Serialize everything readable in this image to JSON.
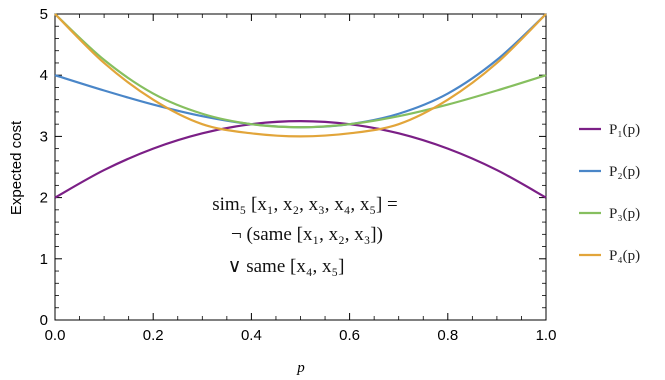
{
  "chart_data": {
    "type": "line",
    "title": "",
    "xlabel": "p",
    "ylabel": "Expected cost",
    "xlim": [
      0,
      1
    ],
    "ylim": [
      0,
      5
    ],
    "x_ticks": [
      "0.0",
      "0.2",
      "0.4",
      "0.6",
      "0.8",
      "1.0"
    ],
    "y_ticks": [
      "0",
      "1",
      "2",
      "3",
      "4",
      "5"
    ],
    "grid": false,
    "legend_position": "right",
    "x": [
      0,
      0.1,
      0.2,
      0.3,
      0.4,
      0.5,
      0.6,
      0.7,
      0.8,
      0.9,
      1.0
    ],
    "series": [
      {
        "name": "P₁(p)",
        "color": "#7b1f86",
        "values": [
          2.0,
          2.45,
          2.8,
          3.05,
          3.2,
          3.25,
          3.2,
          3.05,
          2.8,
          2.45,
          2.0
        ]
      },
      {
        "name": "P₂(p)",
        "color": "#4a86c8",
        "values": [
          4.0,
          3.75,
          3.52,
          3.33,
          3.2,
          3.15,
          3.2,
          3.37,
          3.7,
          4.25,
          5.0
        ]
      },
      {
        "name": "P₃(p)",
        "color": "#86bf5f",
        "values": [
          5.0,
          4.25,
          3.7,
          3.37,
          3.2,
          3.15,
          3.2,
          3.33,
          3.52,
          3.75,
          4.0
        ]
      },
      {
        "name": "P₄(p)",
        "color": "#e2a53a",
        "values": [
          5.0,
          4.2,
          3.6,
          3.2,
          3.05,
          3.0,
          3.05,
          3.2,
          3.6,
          4.2,
          5.0
        ]
      }
    ],
    "annotation": [
      "sim₅ [x₁, x₂, x₃, x₄, x₅] =",
      "¬ (same [x₁, x₂, x₃])",
      "∨ same [x₄, x₅]"
    ]
  }
}
